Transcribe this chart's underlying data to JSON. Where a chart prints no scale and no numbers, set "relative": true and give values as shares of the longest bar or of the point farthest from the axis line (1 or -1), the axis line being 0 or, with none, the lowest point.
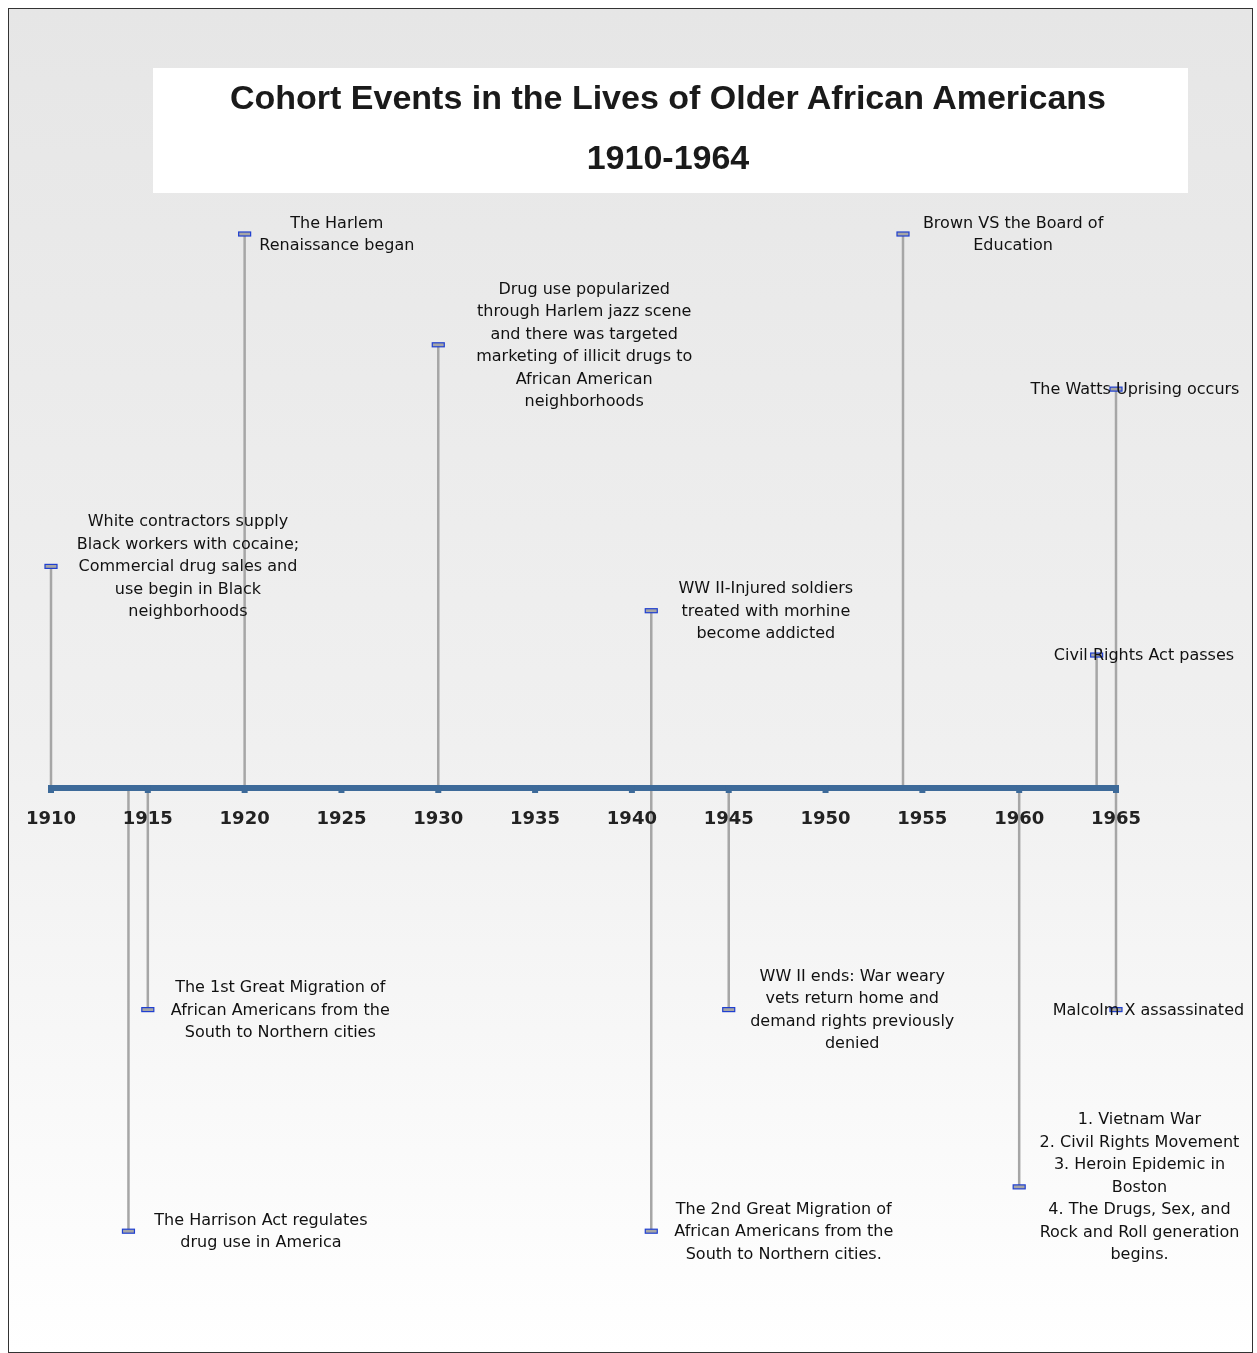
{
  "chart_data": {
    "type": "lollipop",
    "title": "Cohort Events in the Lives of Older African Americans",
    "subtitle": "1910-1964",
    "relative": true,
    "xlim": [
      1910,
      1965
    ],
    "xticks": [
      1910,
      1915,
      1920,
      1925,
      1930,
      1935,
      1940,
      1945,
      1950,
      1955,
      1960,
      1965
    ],
    "series": [
      {
        "color": "#a6a6a6",
        "x": [
          1910,
          1914,
          1915,
          1920,
          1930,
          1941,
          1941,
          1945,
          1954,
          1960,
          1964,
          1965,
          1965
        ],
        "values": [
          0.4,
          -0.8,
          -0.4,
          1.0,
          0.8,
          0.32,
          -0.8,
          -0.4,
          1.0,
          -0.72,
          0.24,
          0.72,
          -0.4
        ]
      }
    ],
    "annotations": [
      {
        "text": "White contractors supply\nBlack workers with cocaine;\nCommercial drug sales and\nuse begin in Black\nneighborhoods",
        "x": 1910,
        "y": 0.4
      },
      {
        "text": "The Harrison Act regulates\ndrug use in America",
        "x": 1914,
        "y": -0.8
      },
      {
        "text": "The 1st Great Migration of\nAfrican Americans from the\nSouth to Northern cities",
        "x": 1915,
        "y": -0.4
      },
      {
        "text": "The Harlem\nRenaissance began",
        "x": 1920,
        "y": 1.0
      },
      {
        "text": "Drug use popularized\nthrough Harlem jazz scene\nand there was targeted\nmarketing of illicit drugs to\nAfrican American\nneighborhoods",
        "x": 1930,
        "y": 0.8
      },
      {
        "text": "WW II-Injured soldiers\ntreated with morhine\nbecome addicted",
        "x": 1941,
        "y": 0.32
      },
      {
        "text": "The 2nd Great Migration of\nAfrican Americans from the\nSouth to Northern cities.",
        "x": 1941,
        "y": -0.8
      },
      {
        "text": "WW II ends: War weary\nvets return home and\ndemand rights previously\ndenied",
        "x": 1945,
        "y": -0.4
      },
      {
        "text": "Brown VS the Board of\nEducation",
        "x": 1954,
        "y": 1.0
      },
      {
        "text": "1. Vietnam War\n2. Civil Rights Movement\n3. Heroin Epidemic in\nBoston\n4. The Drugs, Sex, and\nRock and Roll generation\nbegins.",
        "x": 1960,
        "y": -0.72
      },
      {
        "text": "Civil Rights Act passes",
        "x": 1964,
        "y": 0.24
      },
      {
        "text": "The Watts Uprising occurs",
        "x": 1965,
        "y": 0.72
      },
      {
        "text": "Malcolm X assassinated",
        "x": 1965,
        "y": -0.4
      }
    ]
  }
}
